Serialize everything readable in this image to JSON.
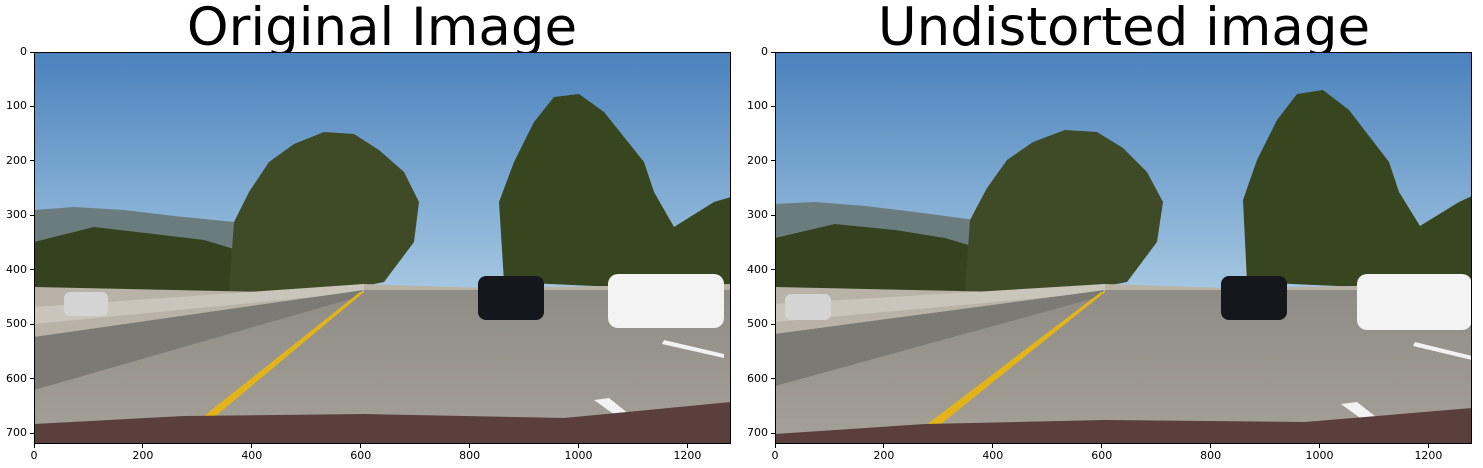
{
  "panels": [
    {
      "title": "Original Image",
      "x_ticks": [
        "0",
        "200",
        "400",
        "600",
        "800",
        "1000",
        "1200"
      ],
      "y_ticks": [
        "0",
        "100",
        "200",
        "300",
        "400",
        "500",
        "600",
        "700"
      ]
    },
    {
      "title": "Undistorted image",
      "x_ticks": [
        "0",
        "200",
        "400",
        "600",
        "800",
        "1000",
        "1200"
      ],
      "y_ticks": [
        "0",
        "100",
        "200",
        "300",
        "400",
        "500",
        "600",
        "700"
      ]
    }
  ],
  "colors": {
    "sky_top": "#4a82bd",
    "sky_bottom": "#9ec3e0",
    "road": "#9c988f",
    "lane_yellow": "#e3b419",
    "lane_white": "#f2f2f2",
    "trees": "#3e4b27",
    "hills": "#6b7c7e"
  }
}
